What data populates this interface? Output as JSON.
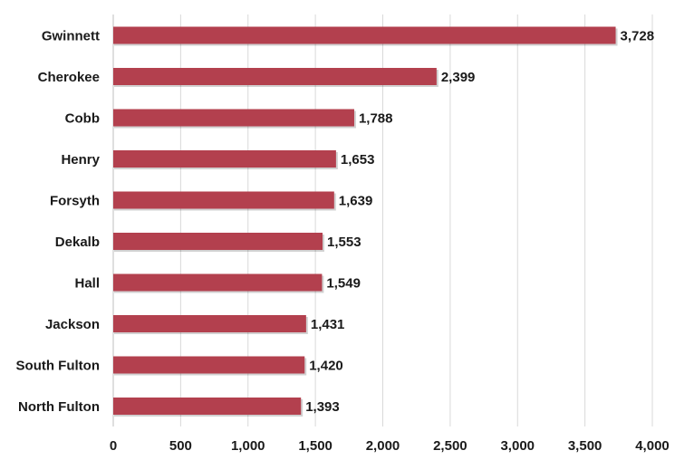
{
  "chart_data": {
    "type": "bar",
    "orientation": "horizontal",
    "categories": [
      "Gwinnett",
      "Cherokee",
      "Cobb",
      "Henry",
      "Forsyth",
      "Dekalb",
      "Hall",
      "Jackson",
      "South Fulton",
      "North Fulton"
    ],
    "values": [
      3728,
      2399,
      1788,
      1653,
      1639,
      1553,
      1549,
      1431,
      1420,
      1393
    ],
    "value_labels": [
      "3,728",
      "2,399",
      "1,788",
      "1,653",
      "1,639",
      "1,553",
      "1,549",
      "1,431",
      "1,420",
      "1,393"
    ],
    "x_ticks": [
      0,
      500,
      1000,
      1500,
      2000,
      2500,
      3000,
      3500,
      4000
    ],
    "x_tick_labels": [
      "0",
      "500",
      "1,000",
      "1,500",
      "2,000",
      "2,500",
      "3,000",
      "3,500",
      "4,000"
    ],
    "xlim": [
      0,
      4000
    ],
    "grid": "vertical",
    "legend": "none",
    "bar_color": "#b3404e",
    "title": "",
    "xlabel": "",
    "ylabel": ""
  }
}
